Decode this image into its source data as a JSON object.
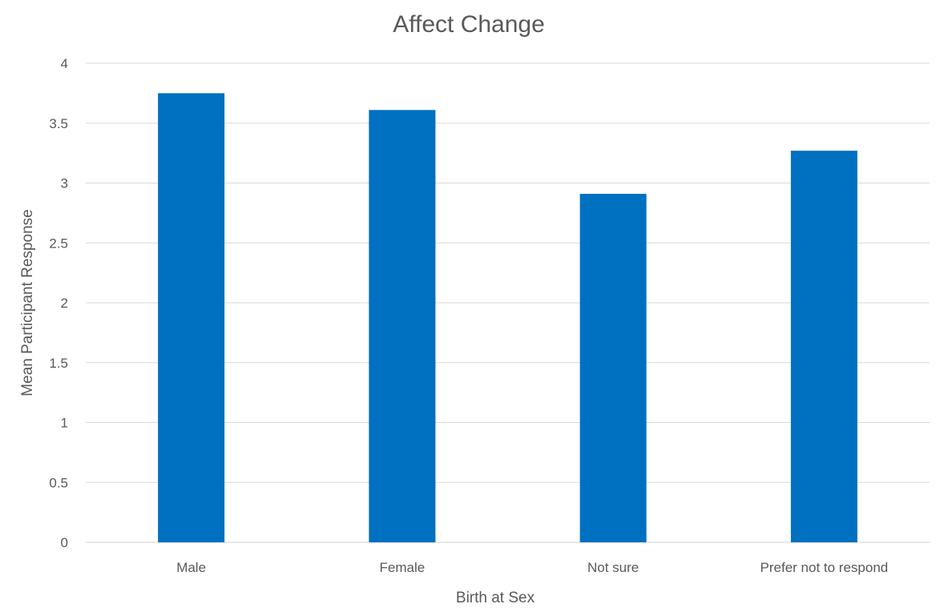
{
  "chart_data": {
    "type": "bar",
    "title": "Affect Change",
    "xlabel": "Birth at Sex",
    "ylabel": "Mean Participant  Response",
    "categories": [
      "Male",
      "Female",
      "Not sure",
      "Prefer not to respond"
    ],
    "series": [
      {
        "values": [
          3.75,
          3.61,
          2.91,
          3.27
        ],
        "color": "#0070C0"
      }
    ],
    "ylim": [
      0,
      4
    ],
    "yticks": [
      "0",
      "0.5",
      "1",
      "1.5",
      "2",
      "2.5",
      "3",
      "3.5",
      "4"
    ],
    "grid": true,
    "legend": "none"
  }
}
